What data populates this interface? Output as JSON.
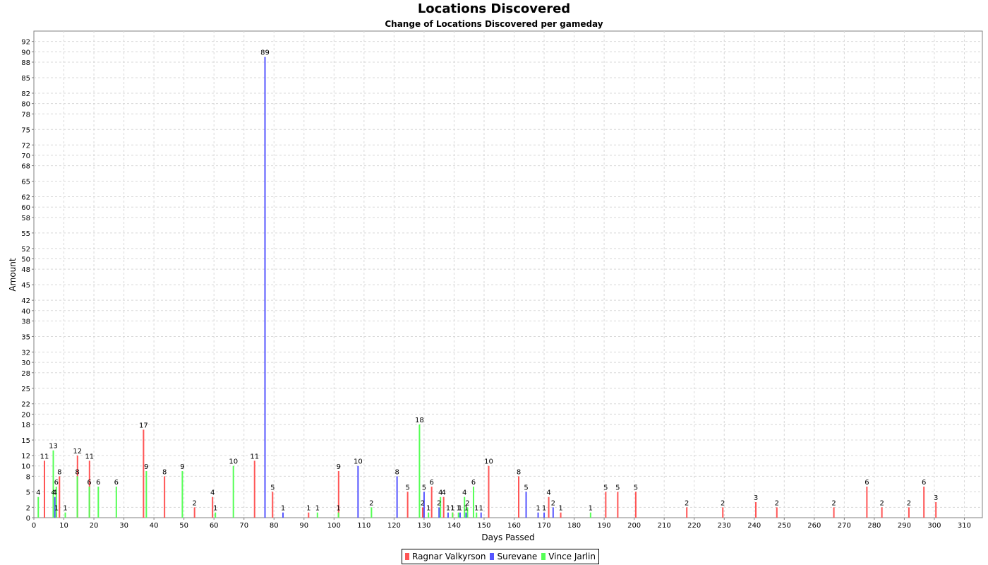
{
  "chart_data": {
    "type": "bar",
    "title": "Locations Discovered",
    "subtitle": "Change of Locations Discovered per gameday",
    "xlabel": "Days Passed",
    "ylabel": "Amount",
    "xlim": [
      0,
      316
    ],
    "ylim": [
      0,
      94
    ],
    "x_ticks": [
      0,
      10,
      20,
      30,
      40,
      50,
      60,
      70,
      80,
      90,
      100,
      110,
      120,
      130,
      140,
      150,
      160,
      170,
      180,
      190,
      200,
      210,
      220,
      230,
      240,
      250,
      260,
      270,
      280,
      290,
      300,
      310
    ],
    "y_ticks": [
      0,
      2,
      5,
      8,
      10,
      12,
      15,
      18,
      20,
      22,
      25,
      28,
      30,
      32,
      35,
      38,
      40,
      42,
      45,
      48,
      50,
      52,
      55,
      58,
      60,
      62,
      65,
      68,
      70,
      72,
      75,
      78,
      80,
      82,
      85,
      88,
      90,
      92
    ],
    "grid": true,
    "legend_position": "bottom",
    "series": [
      {
        "name": "Ragnar Valkyrson",
        "color": "#ff5555",
        "points": [
          [
            4,
            11
          ],
          [
            8,
            1
          ],
          [
            9,
            8
          ],
          [
            15,
            12
          ],
          [
            19,
            11
          ],
          [
            37,
            17
          ],
          [
            44,
            8
          ],
          [
            54,
            2
          ],
          [
            60,
            4
          ],
          [
            74,
            11
          ],
          [
            80,
            5
          ],
          [
            92,
            1
          ],
          [
            102,
            9
          ],
          [
            125,
            5
          ],
          [
            130,
            2
          ],
          [
            133,
            6
          ],
          [
            137,
            4
          ],
          [
            140,
            1
          ],
          [
            152,
            10
          ],
          [
            162,
            8
          ],
          [
            172,
            4
          ],
          [
            176,
            1
          ],
          [
            191,
            5
          ],
          [
            195,
            5
          ],
          [
            201,
            5
          ],
          [
            218,
            2
          ],
          [
            230,
            2
          ],
          [
            241,
            3
          ],
          [
            248,
            2
          ],
          [
            267,
            2
          ],
          [
            278,
            6
          ],
          [
            283,
            2
          ],
          [
            292,
            2
          ],
          [
            297,
            6
          ],
          [
            301,
            3
          ]
        ]
      },
      {
        "name": "Surevane",
        "color": "#5555ff",
        "points": [
          [
            7,
            4
          ],
          [
            77,
            89
          ],
          [
            83,
            1
          ],
          [
            108,
            10
          ],
          [
            121,
            8
          ],
          [
            130,
            5
          ],
          [
            135,
            2
          ],
          [
            138,
            1
          ],
          [
            142,
            1
          ],
          [
            144,
            1
          ],
          [
            149,
            1
          ],
          [
            164,
            5
          ],
          [
            168,
            1
          ],
          [
            170,
            1
          ],
          [
            173,
            2
          ]
        ]
      },
      {
        "name": "Vince Jarlin",
        "color": "#55ff55",
        "points": [
          [
            1,
            4
          ],
          [
            6,
            13
          ],
          [
            6,
            4
          ],
          [
            7,
            6
          ],
          [
            10,
            1
          ],
          [
            14,
            8
          ],
          [
            18,
            6
          ],
          [
            21,
            6
          ],
          [
            27,
            6
          ],
          [
            37,
            9
          ],
          [
            49,
            9
          ],
          [
            60,
            1
          ],
          [
            66,
            10
          ],
          [
            94,
            1
          ],
          [
            101,
            1
          ],
          [
            112,
            2
          ],
          [
            128,
            18
          ],
          [
            131,
            1
          ],
          [
            135,
            4
          ],
          [
            139,
            1
          ],
          [
            141,
            1
          ],
          [
            143,
            4
          ],
          [
            144,
            2
          ],
          [
            146,
            6
          ],
          [
            147,
            1
          ],
          [
            185,
            1
          ]
        ]
      }
    ]
  }
}
